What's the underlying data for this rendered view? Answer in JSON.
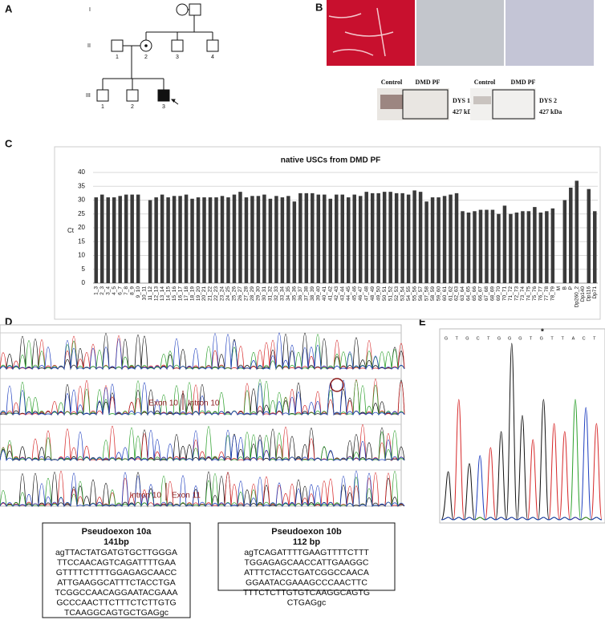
{
  "panels": [
    "A",
    "B",
    "C",
    "D",
    "E"
  ],
  "pedigree": {
    "generations": [
      "I",
      "II",
      "III"
    ],
    "gen2_ids": [
      "1",
      "2",
      "3",
      "4"
    ],
    "gen3_ids": [
      "1",
      "2",
      "3"
    ]
  },
  "blots": [
    {
      "lanes": [
        "Control",
        "DMD PF"
      ],
      "antibody": "DYS 1",
      "size": "427 kDa"
    },
    {
      "lanes": [
        "Control",
        "DMD PF"
      ],
      "antibody": "DYS 2",
      "size": "427 kDa"
    }
  ],
  "chart_data": {
    "type": "bar",
    "title": "native USCs from DMD PF",
    "y_label": "Ct",
    "categories": [
      "1_3",
      "2_3",
      "3_4",
      "4_5",
      "6_7",
      "7_8",
      "8_9",
      "9_10",
      "10_11",
      "11_12",
      "12_13",
      "13_14",
      "14_15",
      "15_16",
      "16_17",
      "17_18",
      "18_19",
      "19_20",
      "20_21",
      "21_22",
      "22_23",
      "23_24",
      "24_25",
      "25_26",
      "26_27",
      "27_28",
      "28_29",
      "29_30",
      "30_31",
      "31_32",
      "32_33",
      "33_34",
      "34_35",
      "35_36",
      "36_37",
      "37_38",
      "38_39",
      "39_40",
      "40_41",
      "41_42",
      "42_43",
      "43_44",
      "44_45",
      "45_46",
      "46_47",
      "47_48",
      "48_49",
      "49_50",
      "50_51",
      "51_52",
      "52_53",
      "53_54",
      "54_55",
      "55_56",
      "56_57",
      "57_58",
      "58_59",
      "59_60",
      "60_61",
      "61_62",
      "62_63",
      "63_64",
      "64_65",
      "65_66",
      "66_67",
      "67_68",
      "68_69",
      "69_70",
      "70_71",
      "71_72",
      "72_73",
      "73_74",
      "74_75",
      "75_76",
      "76_77",
      "77_78",
      "78_79",
      "M",
      "B",
      "P",
      "Dp260_2",
      "Dp140",
      "Dp116",
      "Dp71"
    ],
    "values": [
      31,
      32,
      31,
      31,
      31.5,
      32,
      32,
      32,
      null,
      30,
      31,
      32,
      31,
      31.5,
      31.5,
      32,
      30.5,
      31,
      31,
      31,
      31,
      31.5,
      31,
      32,
      33,
      31,
      31.5,
      31.5,
      32,
      30.5,
      31.5,
      31,
      31.5,
      29.5,
      32.5,
      32.5,
      32.5,
      32,
      32,
      30.5,
      32,
      32,
      31,
      32,
      31.5,
      33,
      32.5,
      32.5,
      33,
      33,
      32.5,
      32.5,
      32,
      33.5,
      33,
      29.5,
      31,
      31,
      31.5,
      32,
      32.5,
      26,
      25.5,
      26,
      26.5,
      26.5,
      26.5,
      25,
      28,
      25,
      25.5,
      26,
      26,
      27.5,
      25.5,
      26,
      27,
      null,
      30,
      34.5,
      37,
      null,
      34,
      26
    ],
    "color": "#3a3a3a",
    "ylim": [
      0,
      40
    ],
    "yticks": [
      0,
      5,
      10,
      15,
      20,
      25,
      30,
      35,
      40
    ],
    "grid": true
  },
  "chromatogram_labels": [
    "Exon 10",
    "Intron 10",
    "Intron 10",
    "Exon 11"
  ],
  "pseudoexons": [
    {
      "title": "Pseudoexon 10a",
      "length": "141bp",
      "sequence": [
        "agTTACTATGATGTGCTTGGGA",
        "TTCCAACAGTCAGATTTTGAA",
        "GTTTTCTTTTGGAGAGCAACC",
        "ATTGAAGGCATTTCTACCTGA",
        "TCGGCCAACAGGAATACGAAA",
        "GCCCAACTTCTTTCTCTTGTG",
        "TCAAGGCAGTGCTGAGgc"
      ]
    },
    {
      "title": "Pseudoexon 10b",
      "length": "112 bp",
      "sequence": [
        "agTCAGATTTTGAAGTTTTCTTT",
        "TGGAGAGCAACCATTGAAGGC",
        "ATTTCTACCTGATCGGCCAACA",
        "GGAATACGAAAGCCCAACTTC",
        "TTTCTCTTGTGTCAAGGCAGTG",
        "CTGAGgc"
      ]
    }
  ],
  "panel_e": {
    "marker": "*",
    "bases": [
      "G",
      "T",
      "G",
      "C",
      "T",
      "G",
      "G",
      "G",
      "T",
      "G",
      "T",
      "T",
      "A",
      "C",
      "T"
    ]
  }
}
